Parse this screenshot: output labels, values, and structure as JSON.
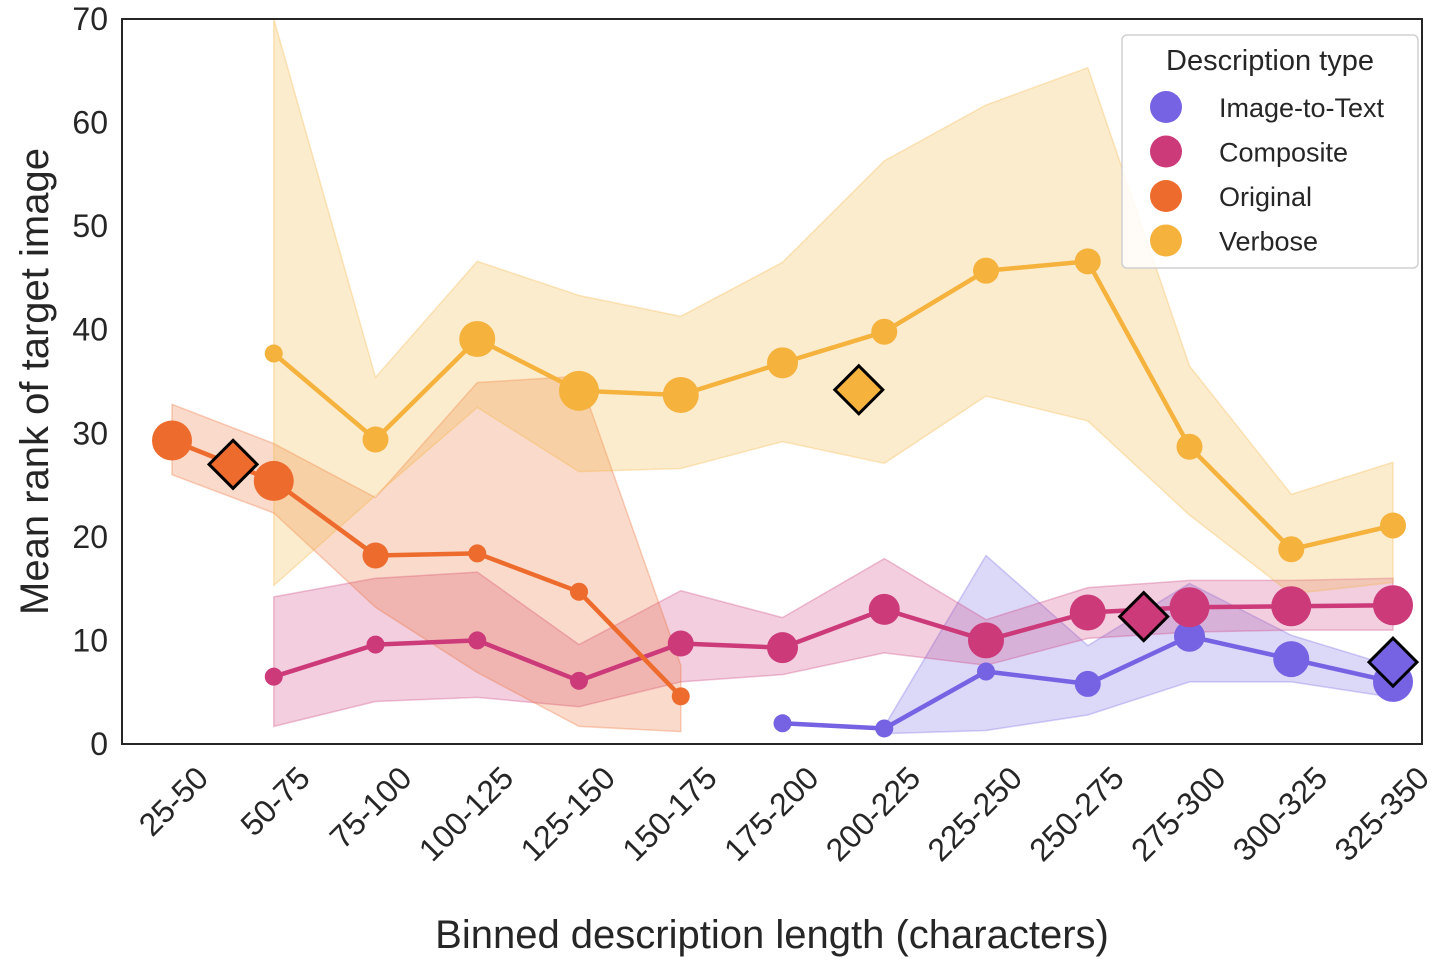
{
  "chart_data": {
    "type": "line",
    "title": "",
    "xlabel": "Binned description length (characters)",
    "ylabel": "Mean rank of target image",
    "ylim": [
      0,
      70
    ],
    "yticks": [
      0,
      10,
      20,
      30,
      40,
      50,
      60,
      70
    ],
    "grid": false,
    "categories": [
      "25-50",
      "50-75",
      "75-100",
      "100-125",
      "125-150",
      "150-175",
      "175-200",
      "200-225",
      "225-250",
      "250-275",
      "275-300",
      "300-325",
      "325-350"
    ],
    "legend": {
      "title": "Description type",
      "placement": "top-right"
    },
    "series": [
      {
        "name": "Image-to-Text",
        "color": "#7563e3",
        "points": [
          {
            "category": "175-200",
            "value": 2.0,
            "weight": 1
          },
          {
            "category": "200-225",
            "value": 1.5,
            "weight": 1
          },
          {
            "category": "225-250",
            "value": 7.0,
            "weight": 1
          },
          {
            "category": "250-275",
            "value": 5.8,
            "weight": 2
          },
          {
            "category": "275-300",
            "value": 10.4,
            "weight": 3
          },
          {
            "category": "300-325",
            "value": 8.2,
            "weight": 4
          },
          {
            "category": "325-350",
            "value": 6.0,
            "weight": 5
          }
        ],
        "band": [
          {
            "category": "200-225",
            "lower": 1.0,
            "upper": 1.7
          },
          {
            "category": "225-250",
            "lower": 1.3,
            "upper": 18.2
          },
          {
            "category": "250-275",
            "lower": 2.8,
            "upper": 9.5
          },
          {
            "category": "275-300",
            "lower": 6.0,
            "upper": 15.5
          },
          {
            "category": "300-325",
            "lower": 6.0,
            "upper": 10.5
          },
          {
            "category": "325-350",
            "lower": 4.5,
            "upper": 7.5
          }
        ],
        "mean": {
          "x_position": 12.0,
          "value": 7.9
        }
      },
      {
        "name": "Composite",
        "color": "#cc3a7a",
        "points": [
          {
            "category": "50-75",
            "value": 6.5,
            "weight": 1
          },
          {
            "category": "75-100",
            "value": 9.6,
            "weight": 1
          },
          {
            "category": "100-125",
            "value": 10.0,
            "weight": 1
          },
          {
            "category": "125-150",
            "value": 6.1,
            "weight": 1
          },
          {
            "category": "150-175",
            "value": 9.7,
            "weight": 2
          },
          {
            "category": "175-200",
            "value": 9.3,
            "weight": 3
          },
          {
            "category": "200-225",
            "value": 13.0,
            "weight": 3
          },
          {
            "category": "225-250",
            "value": 10.0,
            "weight": 4
          },
          {
            "category": "250-275",
            "value": 12.7,
            "weight": 4
          },
          {
            "category": "275-300",
            "value": 13.2,
            "weight": 5
          },
          {
            "category": "300-325",
            "value": 13.3,
            "weight": 5
          },
          {
            "category": "325-350",
            "value": 13.4,
            "weight": 5
          }
        ],
        "band": [
          {
            "category": "50-75",
            "lower": 1.7,
            "upper": 14.2
          },
          {
            "category": "75-100",
            "lower": 4.1,
            "upper": 16.0
          },
          {
            "category": "100-125",
            "lower": 4.5,
            "upper": 16.6
          },
          {
            "category": "125-150",
            "lower": 3.6,
            "upper": 9.6
          },
          {
            "category": "150-175",
            "lower": 6.0,
            "upper": 14.8
          },
          {
            "category": "175-200",
            "lower": 6.7,
            "upper": 12.2
          },
          {
            "category": "200-225",
            "lower": 8.8,
            "upper": 17.9
          },
          {
            "category": "225-250",
            "lower": 7.6,
            "upper": 12.0
          },
          {
            "category": "250-275",
            "lower": 10.2,
            "upper": 15.1
          },
          {
            "category": "275-300",
            "lower": 10.8,
            "upper": 15.8
          },
          {
            "category": "300-325",
            "lower": 11.0,
            "upper": 15.8
          },
          {
            "category": "325-350",
            "lower": 11.0,
            "upper": 16.0
          }
        ],
        "mean": {
          "x_position": 9.55,
          "value": 12.3
        }
      },
      {
        "name": "Original",
        "color": "#ed6b2d",
        "points": [
          {
            "category": "25-50",
            "value": 29.3,
            "weight": 5
          },
          {
            "category": "50-75",
            "value": 25.4,
            "weight": 5
          },
          {
            "category": "75-100",
            "value": 18.2,
            "weight": 2
          },
          {
            "category": "100-125",
            "value": 18.4,
            "weight": 1
          },
          {
            "category": "125-150",
            "value": 14.7,
            "weight": 1
          },
          {
            "category": "150-175",
            "value": 4.6,
            "weight": 1
          }
        ],
        "band": [
          {
            "category": "25-50",
            "lower": 26.0,
            "upper": 32.8
          },
          {
            "category": "50-75",
            "lower": 22.3,
            "upper": 29.0
          },
          {
            "category": "75-100",
            "lower": 13.2,
            "upper": 23.8
          },
          {
            "category": "100-125",
            "lower": 6.9,
            "upper": 34.9
          },
          {
            "category": "125-150",
            "lower": 1.7,
            "upper": 35.5
          },
          {
            "category": "150-175",
            "lower": 1.2,
            "upper": 7.6
          }
        ],
        "mean": {
          "x_position": 0.6,
          "value": 27.0
        }
      },
      {
        "name": "Verbose",
        "color": "#f5b23d",
        "points": [
          {
            "category": "50-75",
            "value": 37.7,
            "weight": 1
          },
          {
            "category": "75-100",
            "value": 29.4,
            "weight": 2
          },
          {
            "category": "100-125",
            "value": 39.1,
            "weight": 4
          },
          {
            "category": "125-150",
            "value": 34.1,
            "weight": 5
          },
          {
            "category": "150-175",
            "value": 33.7,
            "weight": 4
          },
          {
            "category": "175-200",
            "value": 36.8,
            "weight": 3
          },
          {
            "category": "200-225",
            "value": 39.8,
            "weight": 2
          },
          {
            "category": "225-250",
            "value": 45.7,
            "weight": 2
          },
          {
            "category": "250-275",
            "value": 46.6,
            "weight": 2
          },
          {
            "category": "275-300",
            "value": 28.7,
            "weight": 2
          },
          {
            "category": "300-325",
            "value": 18.8,
            "weight": 2
          },
          {
            "category": "325-350",
            "value": 21.1,
            "weight": 2
          }
        ],
        "band": [
          {
            "category": "50-75",
            "lower": 15.3,
            "upper": 70.0
          },
          {
            "category": "75-100",
            "lower": 24.0,
            "upper": 35.4
          },
          {
            "category": "100-125",
            "lower": 32.5,
            "upper": 46.6
          },
          {
            "category": "125-150",
            "lower": 26.3,
            "upper": 43.3
          },
          {
            "category": "150-175",
            "lower": 26.6,
            "upper": 41.3
          },
          {
            "category": "175-200",
            "lower": 29.2,
            "upper": 46.5
          },
          {
            "category": "200-225",
            "lower": 27.1,
            "upper": 56.3
          },
          {
            "category": "225-250",
            "lower": 33.6,
            "upper": 61.7
          },
          {
            "category": "250-275",
            "lower": 31.2,
            "upper": 65.3
          },
          {
            "category": "275-300",
            "lower": 22.1,
            "upper": 36.5
          },
          {
            "category": "300-325",
            "lower": 14.5,
            "upper": 24.1
          },
          {
            "category": "325-350",
            "lower": 15.6,
            "upper": 27.2
          }
        ],
        "mean": {
          "x_position": 6.75,
          "value": 34.2
        }
      }
    ]
  }
}
